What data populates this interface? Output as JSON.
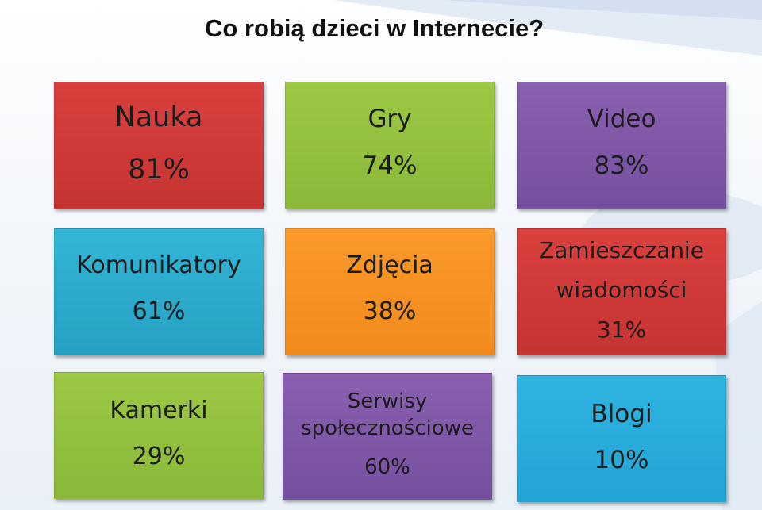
{
  "title": "Co robią dzieci w Internecie?",
  "tiles": [
    {
      "name": "Nauka",
      "value": "81%",
      "color": "#d43c3a"
    },
    {
      "name": "Gry",
      "value": "74%",
      "color": "#94c040"
    },
    {
      "name": "Video",
      "value": "83%",
      "color": "#8058a8"
    },
    {
      "name": "Komunikatory",
      "value": "61%",
      "color": "#2eaed0"
    },
    {
      "name": "Zdjęcia",
      "value": "38%",
      "color": "#f69424"
    },
    {
      "name_line1": "Zamieszczanie",
      "name_line2": "wiadomości",
      "value": "31%",
      "color": "#d43c3a"
    },
    {
      "name": "Kamerki",
      "value": "29%",
      "color": "#94c040"
    },
    {
      "name_line1": "Serwisy",
      "name_line2": "społecznościowe",
      "value": "60%",
      "color": "#8058a8"
    },
    {
      "name": "Blogi",
      "value": "10%",
      "color": "#2aaede"
    }
  ]
}
